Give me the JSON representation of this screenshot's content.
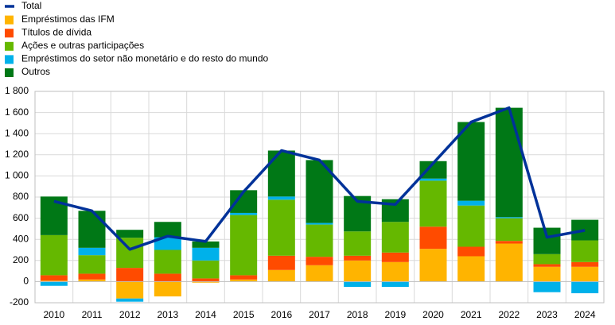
{
  "chart_data": {
    "type": "bar",
    "categories": [
      "2010",
      "2011",
      "2012",
      "2013",
      "2014",
      "2015",
      "2016",
      "2017",
      "2018",
      "2019",
      "2020",
      "2021",
      "2022",
      "2023",
      "2024"
    ],
    "series": [
      {
        "name": "Total",
        "type": "line",
        "color": "#003299",
        "values": [
          760,
          670,
          305,
          430,
          380,
          850,
          1240,
          1150,
          760,
          730,
          1120,
          1510,
          1645,
          420,
          485
        ]
      },
      {
        "name": "Empréstimos das IFM",
        "color": "#ffb400",
        "values": [
          10,
          20,
          -160,
          -140,
          -10,
          20,
          110,
          155,
          200,
          185,
          310,
          240,
          360,
          140,
          140
        ]
      },
      {
        "name": "Títulos de dívida",
        "color": "#ff4b00",
        "values": [
          50,
          55,
          130,
          75,
          30,
          40,
          135,
          80,
          45,
          90,
          210,
          90,
          25,
          25,
          45
        ]
      },
      {
        "name": "Ações e outras participações",
        "color": "#65b800",
        "values": [
          380,
          175,
          285,
          225,
          170,
          570,
          530,
          305,
          230,
          290,
          435,
          390,
          215,
          95,
          205
        ]
      },
      {
        "name": "Empréstimos do setor não monetário e do resto do mundo",
        "color": "#00b1ea",
        "values": [
          -40,
          70,
          -30,
          120,
          120,
          20,
          30,
          15,
          -50,
          -50,
          20,
          45,
          10,
          -100,
          -110
        ]
      },
      {
        "name": "Outros",
        "color": "#007816",
        "values": [
          365,
          350,
          75,
          145,
          60,
          215,
          435,
          595,
          335,
          215,
          165,
          745,
          1035,
          250,
          195
        ]
      }
    ],
    "ylim": [
      -200,
      1800
    ],
    "yticks": [
      -200,
      0,
      200,
      400,
      600,
      800,
      {
        "value": 1000,
        "label": "1 000"
      },
      {
        "value": 1200,
        "label": "1 200"
      },
      {
        "value": 1400,
        "label": "1 400"
      },
      {
        "value": 1600,
        "label": "1 600"
      },
      {
        "value": 1800,
        "label": "1 800"
      }
    ],
    "grid": true,
    "legend": "top-left"
  }
}
